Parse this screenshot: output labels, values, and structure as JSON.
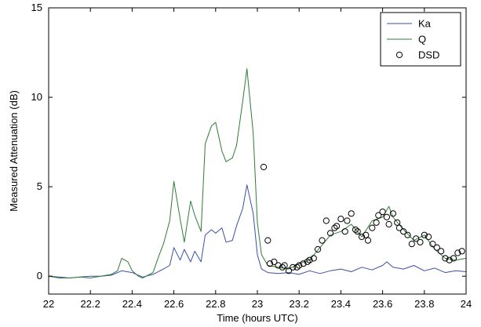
{
  "chart_data": {
    "type": "line",
    "xlabel": "Time (hours UTC)",
    "ylabel": "Measured Attenuation (dB)",
    "xlim": [
      22,
      24
    ],
    "ylim": [
      -1,
      15
    ],
    "xticks": [
      "22",
      "22.2",
      "22.4",
      "22.6",
      "22.8",
      "23",
      "23.2",
      "23.4",
      "23.6",
      "23.8",
      "24"
    ],
    "yticks": [
      "0",
      "5",
      "10",
      "15"
    ],
    "grid": false,
    "legend_placement": "top-right",
    "series": [
      {
        "name": "Ka",
        "kind": "line",
        "color": "#3a4fa8",
        "x": [
          22.0,
          22.05,
          22.1,
          22.15,
          22.2,
          22.25,
          22.3,
          22.35,
          22.4,
          22.45,
          22.5,
          22.55,
          22.58,
          22.6,
          22.63,
          22.65,
          22.68,
          22.7,
          22.73,
          22.75,
          22.78,
          22.8,
          22.83,
          22.85,
          22.88,
          22.9,
          22.93,
          22.95,
          22.98,
          23.0,
          23.02,
          23.05,
          23.1,
          23.15,
          23.2,
          23.25,
          23.3,
          23.35,
          23.4,
          23.45,
          23.5,
          23.55,
          23.6,
          23.62,
          23.65,
          23.7,
          23.75,
          23.8,
          23.85,
          23.9,
          23.95,
          24.0
        ],
        "y": [
          0.0,
          -0.05,
          -0.1,
          -0.05,
          0.0,
          0.0,
          0.05,
          0.3,
          0.2,
          -0.05,
          0.1,
          0.4,
          0.6,
          1.6,
          0.9,
          1.5,
          0.8,
          1.4,
          0.8,
          2.3,
          2.6,
          2.4,
          2.7,
          1.9,
          2.0,
          2.8,
          3.8,
          5.1,
          3.5,
          1.2,
          0.4,
          0.2,
          0.15,
          0.2,
          0.1,
          0.3,
          0.15,
          0.3,
          0.4,
          0.25,
          0.5,
          0.35,
          0.6,
          0.8,
          0.5,
          0.4,
          0.6,
          0.3,
          0.45,
          0.2,
          0.3,
          0.25
        ]
      },
      {
        "name": "Q",
        "kind": "line",
        "color": "#2e7d32",
        "x": [
          22.0,
          22.05,
          22.1,
          22.15,
          22.2,
          22.25,
          22.3,
          22.33,
          22.35,
          22.38,
          22.4,
          22.43,
          22.45,
          22.5,
          22.53,
          22.55,
          22.58,
          22.6,
          22.63,
          22.65,
          22.68,
          22.7,
          22.73,
          22.75,
          22.78,
          22.8,
          22.83,
          22.85,
          22.88,
          22.9,
          22.93,
          22.95,
          22.98,
          23.0,
          23.02,
          23.05,
          23.1,
          23.15,
          23.2,
          23.25,
          23.3,
          23.35,
          23.4,
          23.45,
          23.5,
          23.55,
          23.6,
          23.63,
          23.65,
          23.7,
          23.75,
          23.8,
          23.85,
          23.9,
          23.95,
          24.0
        ],
        "y": [
          0.0,
          -0.1,
          -0.1,
          -0.05,
          -0.1,
          0.0,
          0.1,
          0.3,
          1.0,
          0.8,
          0.3,
          0.0,
          -0.1,
          0.2,
          1.2,
          1.8,
          3.1,
          5.3,
          3.2,
          1.9,
          4.2,
          3.4,
          2.5,
          7.4,
          8.4,
          8.6,
          7.0,
          6.4,
          6.6,
          7.3,
          9.8,
          11.6,
          8.0,
          3.0,
          1.2,
          0.6,
          0.5,
          0.4,
          0.7,
          0.9,
          1.6,
          2.3,
          2.5,
          2.9,
          2.2,
          3.1,
          3.3,
          3.9,
          3.3,
          2.6,
          2.0,
          2.3,
          1.5,
          1.0,
          0.9,
          1.0
        ]
      },
      {
        "name": "DSD",
        "kind": "scatter",
        "color": "#000000",
        "x": [
          23.03,
          23.05,
          23.06,
          23.08,
          23.1,
          23.12,
          23.13,
          23.15,
          23.17,
          23.19,
          23.2,
          23.22,
          23.24,
          23.25,
          23.27,
          23.29,
          23.31,
          23.33,
          23.35,
          23.37,
          23.38,
          23.4,
          23.42,
          23.43,
          23.45,
          23.47,
          23.48,
          23.5,
          23.52,
          23.53,
          23.55,
          23.57,
          23.58,
          23.6,
          23.62,
          23.63,
          23.65,
          23.67,
          23.68,
          23.7,
          23.72,
          23.74,
          23.76,
          23.78,
          23.8,
          23.82,
          23.84,
          23.86,
          23.88,
          23.9,
          23.92,
          23.94,
          23.96,
          23.98
        ],
        "y": [
          6.1,
          2.0,
          0.7,
          0.8,
          0.6,
          0.5,
          0.6,
          0.3,
          0.5,
          0.5,
          0.6,
          0.7,
          0.8,
          0.9,
          1.0,
          1.5,
          2.0,
          3.1,
          2.4,
          2.7,
          2.8,
          3.2,
          2.5,
          3.1,
          3.5,
          2.6,
          2.5,
          2.2,
          2.3,
          2.0,
          2.7,
          3.0,
          3.4,
          3.6,
          3.3,
          2.9,
          3.5,
          3.0,
          2.7,
          2.5,
          2.3,
          1.8,
          2.1,
          1.9,
          2.3,
          2.2,
          1.8,
          1.6,
          1.4,
          1.0,
          0.9,
          1.0,
          1.3,
          1.4
        ]
      }
    ]
  }
}
